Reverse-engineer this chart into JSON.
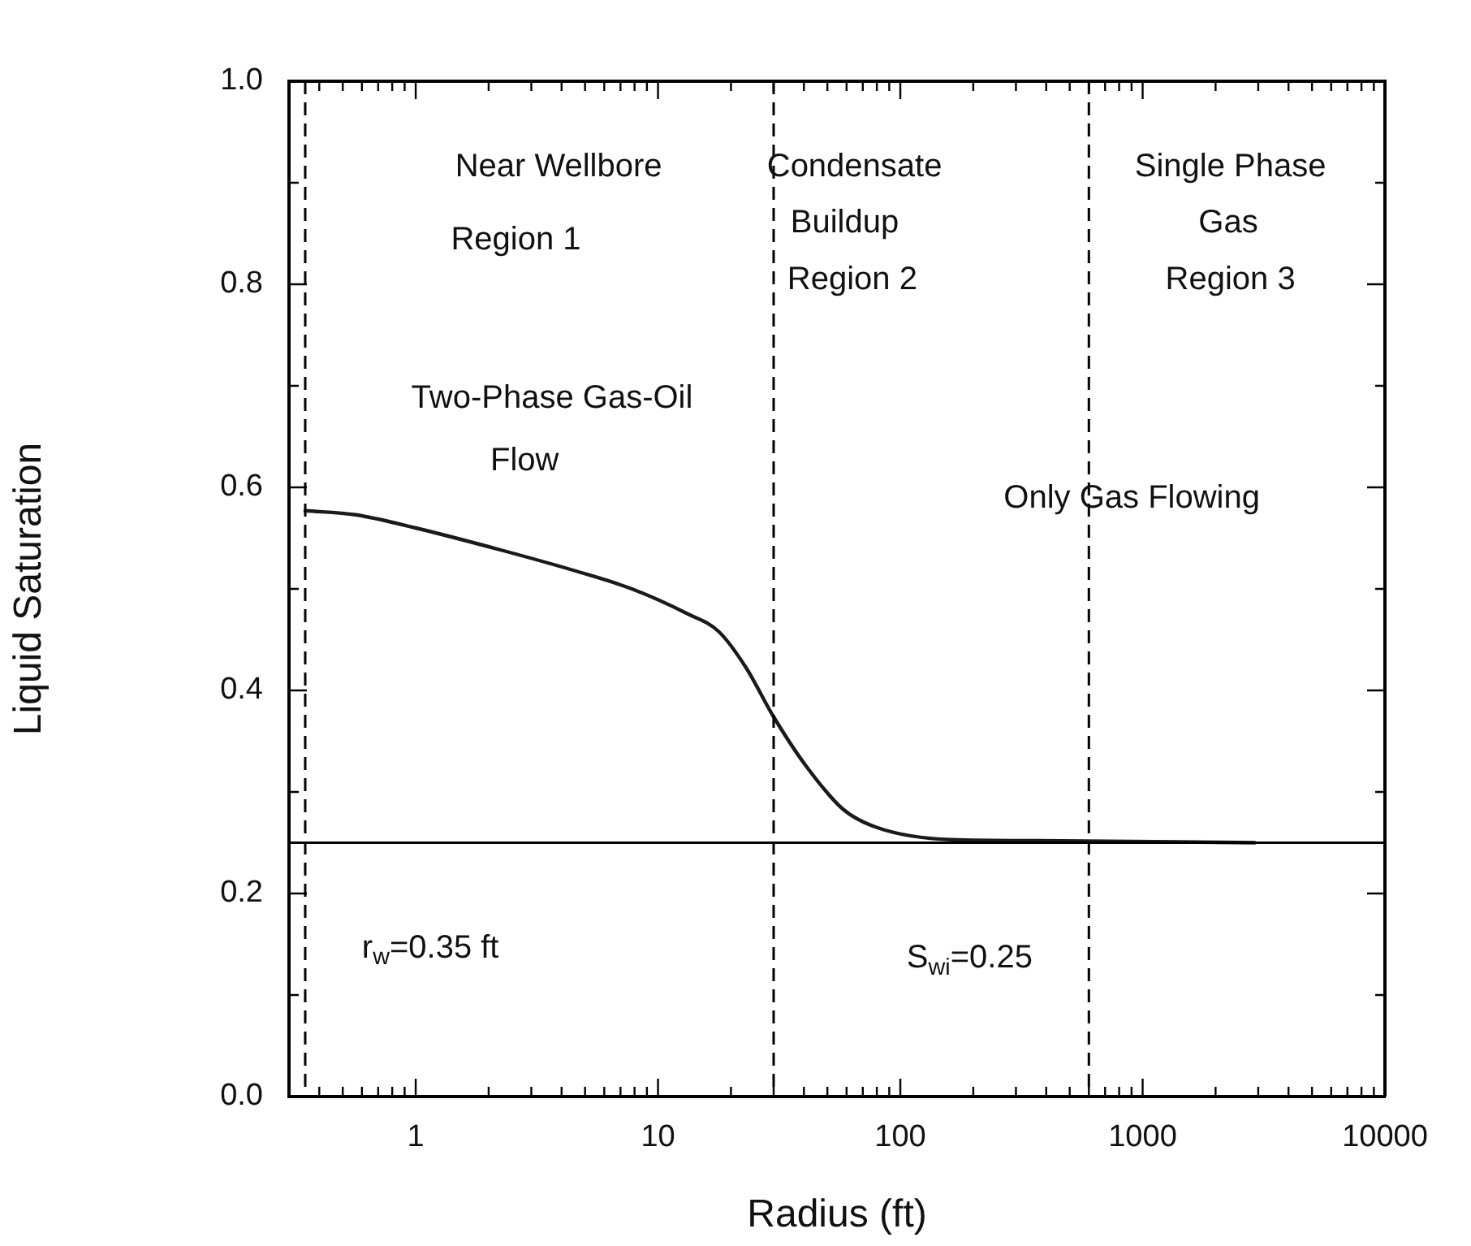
{
  "chart_data": {
    "type": "line",
    "xlabel": "Radius (ft)",
    "ylabel": "Liquid Saturation",
    "log": "x",
    "grid": false,
    "legend": false,
    "marker": "none",
    "line_style": "solid",
    "xlim": [
      0.3,
      10000
    ],
    "xticks": [
      {
        "value": 0.3,
        "label": null
      },
      {
        "value": 0.4,
        "label": null
      },
      {
        "value": 0.5,
        "label": null
      },
      {
        "value": 0.6,
        "label": null
      },
      {
        "value": 0.7,
        "label": null
      },
      {
        "value": 0.8,
        "label": null
      },
      {
        "value": 0.9,
        "label": null
      },
      1,
      {
        "value": 2,
        "label": null
      },
      {
        "value": 3,
        "label": null
      },
      {
        "value": 4,
        "label": null
      },
      {
        "value": 5,
        "label": null
      },
      {
        "value": 6,
        "label": null
      },
      {
        "value": 7,
        "label": null
      },
      {
        "value": 8,
        "label": null
      },
      {
        "value": 9,
        "label": null
      },
      10,
      {
        "value": 20,
        "label": null
      },
      {
        "value": 30,
        "label": null
      },
      {
        "value": 40,
        "label": null
      },
      {
        "value": 50,
        "label": null
      },
      {
        "value": 60,
        "label": null
      },
      {
        "value": 70,
        "label": null
      },
      {
        "value": 80,
        "label": null
      },
      {
        "value": 90,
        "label": null
      },
      100,
      {
        "value": 200,
        "label": null
      },
      {
        "value": 300,
        "label": null
      },
      {
        "value": 400,
        "label": null
      },
      {
        "value": 500,
        "label": null
      },
      {
        "value": 600,
        "label": null
      },
      {
        "value": 700,
        "label": null
      },
      {
        "value": 800,
        "label": null
      },
      {
        "value": 900,
        "label": null
      },
      1000,
      {
        "value": 2000,
        "label": null
      },
      {
        "value": 3000,
        "label": null
      },
      {
        "value": 4000,
        "label": null
      },
      {
        "value": 5000,
        "label": null
      },
      {
        "value": 6000,
        "label": null
      },
      {
        "value": 7000,
        "label": null
      },
      {
        "value": 8000,
        "label": null
      },
      {
        "value": 9000,
        "label": null
      },
      10000
    ],
    "ylim": [
      0,
      1
    ],
    "yticks": [
      {
        "value": 0,
        "label": "0.0"
      },
      {
        "value": 0.1,
        "label": null
      },
      {
        "value": 0.2,
        "label": "0.2"
      },
      {
        "value": 0.3,
        "label": null
      },
      {
        "value": 0.4,
        "label": "0.4"
      },
      {
        "value": 0.5,
        "label": null
      },
      {
        "value": 0.6,
        "label": "0.6"
      },
      {
        "value": 0.7,
        "label": null
      },
      {
        "value": 0.8,
        "label": "0.8"
      },
      {
        "value": 0.9,
        "label": null
      },
      {
        "value": 1,
        "label": "1.0"
      }
    ],
    "series": [
      {
        "color": "#1a1a1a",
        "x": [
          0.35,
          0.565,
          1,
          2.27,
          4.67,
          7.8,
          13.1,
          17.8,
          23,
          30,
          40.7,
          58,
          80,
          163,
          372,
          2900
        ],
        "values": [
          0.577,
          0.573,
          0.56,
          0.538,
          0.517,
          0.5,
          0.476,
          0.458,
          0.423,
          0.374,
          0.326,
          0.283,
          0.265,
          0.253,
          0.252,
          0.25
        ]
      }
    ],
    "ref_lines": [
      {
        "axis": "x",
        "value": 0.35,
        "line_style": "dashed",
        "color": "#000000"
      },
      {
        "axis": "x",
        "value": 30,
        "line_style": "dashed",
        "color": "#000000"
      },
      {
        "axis": "x",
        "value": 600,
        "line_style": "dashed",
        "color": "#000000"
      },
      {
        "axis": "y",
        "value": 0.25,
        "line_style": "solid",
        "color": "#000000"
      }
    ],
    "annotations": [
      "Near Wellbore",
      "Region 1",
      "Two-Phase Gas-Oil",
      "Flow",
      "Condensate",
      "Buildup",
      "Region 2",
      "Single Phase",
      "Gas",
      "Region 3",
      "Only Gas Flowing",
      "r$_{w}$=0.35 ft",
      "S$_{wi}$=0.25"
    ]
  }
}
